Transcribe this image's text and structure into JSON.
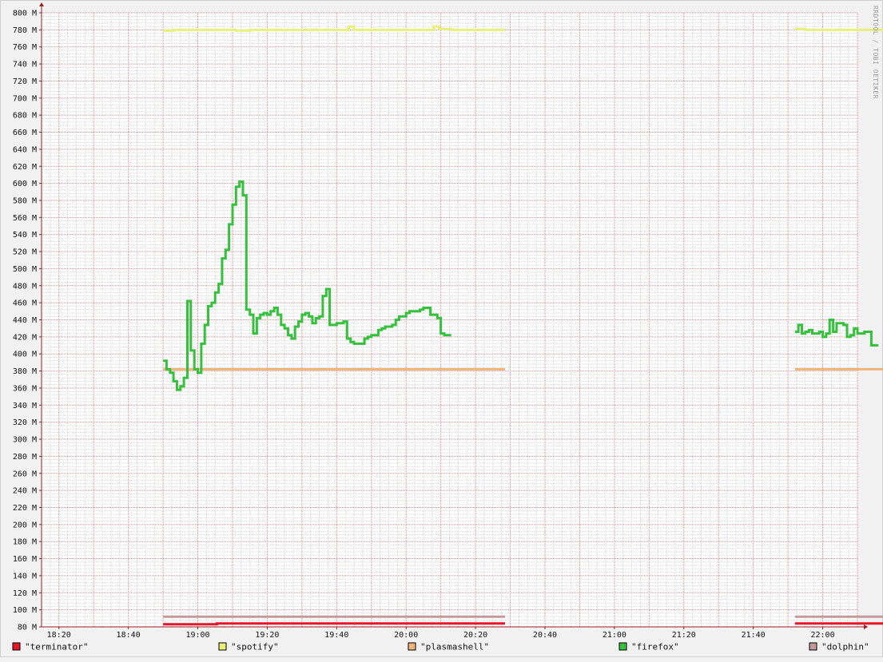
{
  "watermark": "RRDTOOL / TOBI OETIKER",
  "colors": {
    "background": "#f2f2f2",
    "plot_background": "#ffffff",
    "grid_minor": "#d8d8d8",
    "grid_major": "#e58a8a",
    "axis": "#9a1f1f"
  },
  "chart_data": {
    "type": "line",
    "step": true,
    "title": "",
    "xlabel": "",
    "ylabel": "",
    "ylim": [
      80,
      800
    ],
    "y_unit_suffix": " M",
    "y_ticks": [
      80,
      100,
      120,
      140,
      160,
      180,
      200,
      220,
      240,
      260,
      280,
      300,
      320,
      340,
      360,
      380,
      400,
      420,
      440,
      460,
      480,
      500,
      520,
      540,
      560,
      580,
      600,
      620,
      640,
      660,
      680,
      700,
      720,
      740,
      760,
      780,
      800
    ],
    "x_range_minutes": [
      1095,
      1330
    ],
    "x_ticks": [
      {
        "label": "18:20",
        "m": 1100
      },
      {
        "label": "18:40",
        "m": 1120
      },
      {
        "label": "19:00",
        "m": 1140
      },
      {
        "label": "19:20",
        "m": 1160
      },
      {
        "label": "19:40",
        "m": 1180
      },
      {
        "label": "20:00",
        "m": 1200
      },
      {
        "label": "20:20",
        "m": 1220
      },
      {
        "label": "20:40",
        "m": 1240
      },
      {
        "label": "21:00",
        "m": 1260
      },
      {
        "label": "21:20",
        "m": 1280
      },
      {
        "label": "21:40",
        "m": 1300
      },
      {
        "label": "22:00",
        "m": 1320
      }
    ],
    "grid": true,
    "legend_position": "bottom",
    "series": [
      {
        "name": "\"terminator\"",
        "color": "#e8142a",
        "segments": [
          [
            [
              1130,
              83
            ],
            [
              1145.5,
              83
            ],
            [
              1145.5,
              84
            ],
            [
              1228.5,
              84
            ]
          ],
          [
            [
              1312,
              84
            ],
            [
              1340.5,
              84
            ]
          ]
        ]
      },
      {
        "name": "\"spotify\"",
        "color": "#e8f07a",
        "segments": [
          [
            [
              1130,
              779
            ],
            [
              1133,
              779
            ],
            [
              1133,
              780
            ],
            [
              1151,
              780
            ],
            [
              1151,
              779
            ],
            [
              1155,
              779
            ],
            [
              1155,
              780
            ],
            [
              1183.5,
              780
            ],
            [
              1183.5,
              784
            ],
            [
              1185,
              784
            ],
            [
              1185,
              780
            ],
            [
              1208,
              780
            ],
            [
              1208,
              784
            ],
            [
              1209.5,
              784
            ],
            [
              1209.5,
              781
            ],
            [
              1213,
              781
            ],
            [
              1213,
              780
            ],
            [
              1228.5,
              780
            ]
          ],
          [
            [
              1312,
              781
            ],
            [
              1315,
              781
            ],
            [
              1315,
              780
            ],
            [
              1340.5,
              780
            ]
          ]
        ]
      },
      {
        "name": "\"plasmashell\"",
        "color": "#f0b47a",
        "segments": [
          [
            [
              1130,
              382
            ],
            [
              1228.5,
              382
            ]
          ],
          [
            [
              1312,
              382
            ],
            [
              1340.5,
              382
            ]
          ]
        ]
      },
      {
        "name": "\"firefox\"",
        "color": "#35c03d",
        "segments": [
          [
            [
              1130,
              392
            ],
            [
              1131,
              392
            ],
            [
              1131,
              382
            ],
            [
              1132,
              382
            ],
            [
              1132,
              378
            ],
            [
              1133,
              378
            ],
            [
              1133,
              368
            ],
            [
              1134,
              368
            ],
            [
              1134,
              358
            ],
            [
              1135,
              358
            ],
            [
              1135,
              362
            ],
            [
              1136,
              362
            ],
            [
              1136,
              372
            ],
            [
              1137,
              372
            ],
            [
              1137,
              462
            ],
            [
              1138,
              462
            ],
            [
              1138,
              404
            ],
            [
              1139,
              404
            ],
            [
              1139,
              382
            ],
            [
              1140,
              382
            ],
            [
              1140,
              378
            ],
            [
              1141,
              378
            ],
            [
              1141,
              412
            ],
            [
              1142,
              412
            ],
            [
              1142,
              434
            ],
            [
              1143,
              434
            ],
            [
              1143,
              456
            ],
            [
              1144,
              456
            ],
            [
              1144,
              460
            ],
            [
              1145,
              460
            ],
            [
              1145,
              472
            ],
            [
              1146,
              472
            ],
            [
              1146,
              482
            ],
            [
              1147,
              482
            ],
            [
              1147,
              512
            ],
            [
              1148,
              512
            ],
            [
              1148,
              522
            ],
            [
              1149,
              522
            ],
            [
              1149,
              552
            ],
            [
              1150,
              552
            ],
            [
              1150,
              575
            ],
            [
              1151,
              575
            ],
            [
              1151,
              596
            ],
            [
              1152,
              596
            ],
            [
              1152,
              602
            ],
            [
              1153,
              602
            ],
            [
              1153,
              586
            ],
            [
              1154,
              586
            ],
            [
              1154,
              452
            ],
            [
              1155,
              452
            ],
            [
              1155,
              446
            ],
            [
              1156,
              446
            ],
            [
              1156,
              424
            ],
            [
              1157,
              424
            ],
            [
              1157,
              442
            ],
            [
              1158,
              442
            ],
            [
              1158,
              446
            ],
            [
              1159,
              446
            ],
            [
              1159,
              448
            ],
            [
              1160,
              448
            ],
            [
              1160,
              446
            ],
            [
              1161,
              446
            ],
            [
              1161,
              450
            ],
            [
              1162,
              450
            ],
            [
              1162,
              454
            ],
            [
              1163,
              454
            ],
            [
              1163,
              446
            ],
            [
              1164,
              446
            ],
            [
              1164,
              434
            ],
            [
              1165,
              434
            ],
            [
              1165,
              430
            ],
            [
              1166,
              430
            ],
            [
              1166,
              422
            ],
            [
              1167,
              422
            ],
            [
              1167,
              418
            ],
            [
              1168,
              418
            ],
            [
              1168,
              432
            ],
            [
              1169,
              432
            ],
            [
              1169,
              438
            ],
            [
              1170,
              438
            ],
            [
              1170,
              446
            ],
            [
              1171,
              446
            ],
            [
              1171,
              448
            ],
            [
              1172,
              448
            ],
            [
              1172,
              444
            ],
            [
              1173,
              444
            ],
            [
              1173,
              436
            ],
            [
              1174,
              436
            ],
            [
              1174,
              442
            ],
            [
              1175,
              442
            ],
            [
              1175,
              444
            ],
            [
              1176,
              444
            ],
            [
              1176,
              468
            ],
            [
              1177,
              468
            ],
            [
              1177,
              476
            ],
            [
              1178,
              476
            ],
            [
              1178,
              434
            ],
            [
              1179,
              434
            ],
            [
              1179,
              434
            ],
            [
              1180,
              434
            ],
            [
              1180,
              436
            ],
            [
              1181,
              436
            ],
            [
              1181,
              436
            ],
            [
              1182,
              436
            ],
            [
              1182,
              438
            ],
            [
              1183,
              438
            ],
            [
              1183,
              418
            ],
            [
              1184,
              418
            ],
            [
              1184,
              414
            ],
            [
              1185,
              414
            ],
            [
              1185,
              412
            ],
            [
              1186,
              412
            ],
            [
              1186,
              412
            ],
            [
              1187,
              412
            ],
            [
              1187,
              412
            ],
            [
              1188,
              412
            ],
            [
              1188,
              418
            ],
            [
              1189,
              418
            ],
            [
              1189,
              420
            ],
            [
              1190,
              420
            ],
            [
              1190,
              422
            ],
            [
              1191,
              422
            ],
            [
              1191,
              422
            ],
            [
              1192,
              422
            ],
            [
              1192,
              428
            ],
            [
              1193,
              428
            ],
            [
              1193,
              430
            ],
            [
              1194,
              430
            ],
            [
              1194,
              432
            ],
            [
              1195,
              432
            ],
            [
              1195,
              432
            ],
            [
              1196,
              432
            ],
            [
              1196,
              434
            ],
            [
              1197,
              434
            ],
            [
              1197,
              440
            ],
            [
              1198,
              440
            ],
            [
              1198,
              444
            ],
            [
              1199,
              444
            ],
            [
              1199,
              444
            ],
            [
              1200,
              444
            ],
            [
              1200,
              448
            ],
            [
              1201,
              448
            ],
            [
              1201,
              450
            ],
            [
              1202,
              450
            ],
            [
              1202,
              450
            ],
            [
              1203,
              450
            ],
            [
              1203,
              450
            ],
            [
              1204,
              450
            ],
            [
              1204,
              452
            ],
            [
              1205,
              452
            ],
            [
              1205,
              454
            ],
            [
              1206,
              454
            ],
            [
              1206,
              454
            ],
            [
              1207,
              454
            ],
            [
              1207,
              446
            ],
            [
              1208,
              446
            ],
            [
              1208,
              446
            ],
            [
              1209,
              446
            ],
            [
              1209,
              442
            ],
            [
              1210,
              442
            ],
            [
              1210,
              424
            ],
            [
              1211,
              424
            ],
            [
              1211,
              422
            ],
            [
              1212,
              422
            ],
            [
              1212,
              422
            ],
            [
              1213,
              422
            ]
          ],
          [
            [
              1312,
              426
            ],
            [
              1313,
              426
            ],
            [
              1313,
              434
            ],
            [
              1314,
              434
            ],
            [
              1314,
              424
            ],
            [
              1315,
              424
            ],
            [
              1315,
              426
            ],
            [
              1316,
              426
            ],
            [
              1316,
              428
            ],
            [
              1317,
              428
            ],
            [
              1317,
              424
            ],
            [
              1318,
              424
            ],
            [
              1318,
              424
            ],
            [
              1319,
              424
            ],
            [
              1319,
              426
            ],
            [
              1320,
              426
            ],
            [
              1320,
              420
            ],
            [
              1321,
              420
            ],
            [
              1321,
              424
            ],
            [
              1322,
              424
            ],
            [
              1322,
              440
            ],
            [
              1323,
              440
            ],
            [
              1323,
              426
            ],
            [
              1324,
              426
            ],
            [
              1324,
              436
            ],
            [
              1325,
              436
            ],
            [
              1325,
              436
            ],
            [
              1326,
              436
            ],
            [
              1326,
              434
            ],
            [
              1327,
              434
            ],
            [
              1327,
              420
            ],
            [
              1328,
              420
            ],
            [
              1328,
              422
            ],
            [
              1329,
              422
            ],
            [
              1329,
              430
            ],
            [
              1330,
              430
            ],
            [
              1330,
              424
            ],
            [
              1331,
              424
            ],
            [
              1331,
              424
            ],
            [
              1332,
              424
            ],
            [
              1332,
              426
            ],
            [
              1333,
              426
            ],
            [
              1333,
              426
            ],
            [
              1334,
              426
            ],
            [
              1334,
              410
            ],
            [
              1335,
              410
            ],
            [
              1335,
              410
            ],
            [
              1336,
              410
            ]
          ]
        ]
      },
      {
        "name": "\"dolphin\"",
        "color": "#c49a9a",
        "segments": [
          [
            [
              1130,
              92
            ],
            [
              1228.5,
              92
            ]
          ],
          [
            [
              1312,
              92
            ],
            [
              1340.5,
              92
            ]
          ]
        ]
      }
    ]
  }
}
